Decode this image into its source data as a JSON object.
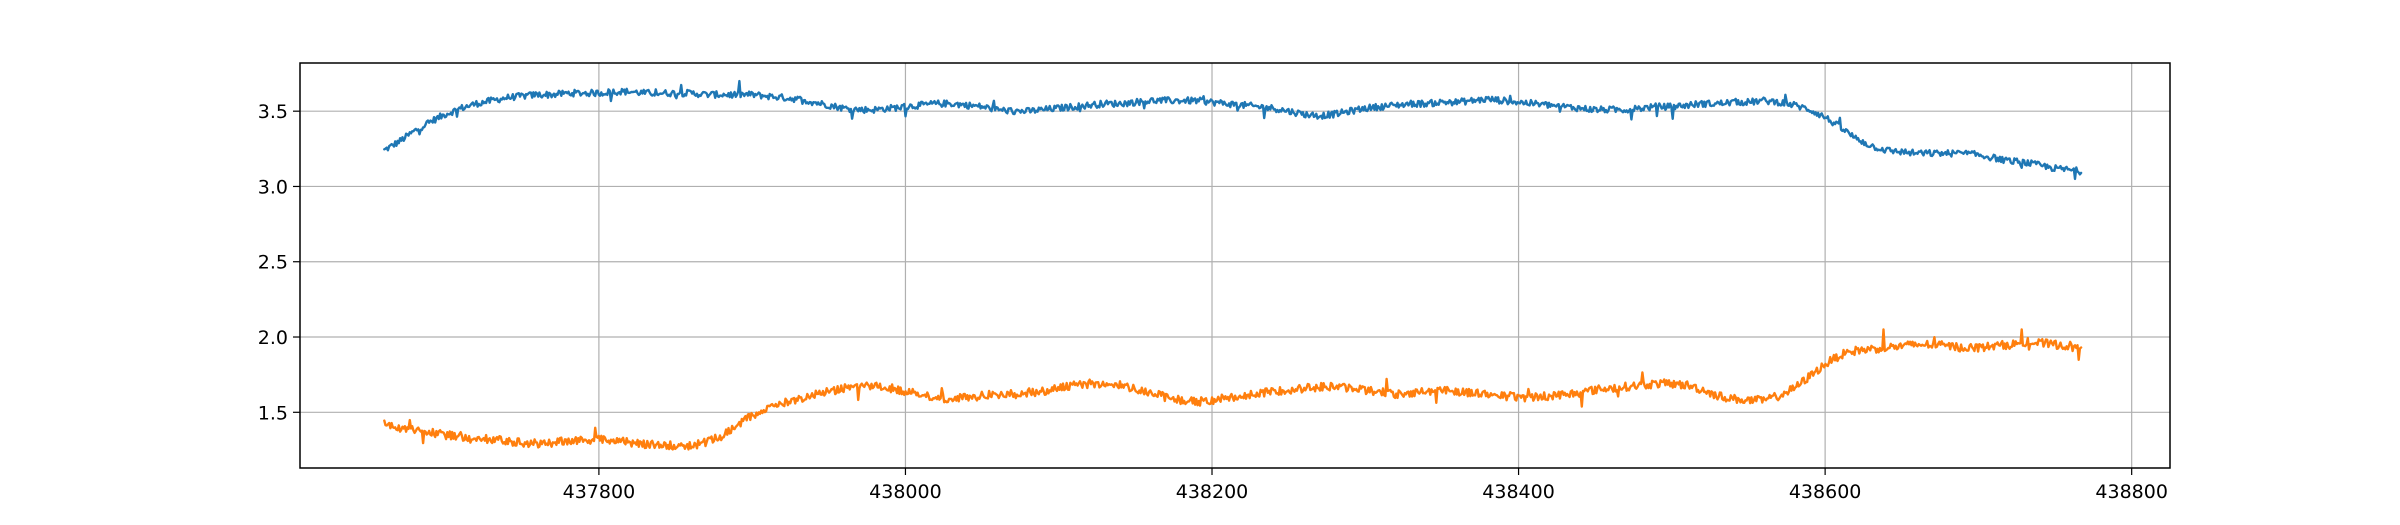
{
  "chart_data": {
    "type": "line",
    "title": "",
    "xlabel": "",
    "ylabel": "",
    "xlim": [
      437605,
      438825
    ],
    "ylim": [
      1.13,
      3.82
    ],
    "grid": true,
    "legend": "none",
    "xticks": [
      437800,
      438000,
      438200,
      438400,
      438600,
      438800
    ],
    "yticks": [
      1.5,
      2.0,
      2.5,
      3.0,
      3.5
    ],
    "series": [
      {
        "color": "#1f77b4",
        "noise": 0.022,
        "x": [
          437660,
          437670,
          437680,
          437690,
          437700,
          437710,
          437720,
          437730,
          437740,
          437750,
          437760,
          437770,
          437780,
          437790,
          437800,
          437810,
          437820,
          437830,
          437840,
          437850,
          437860,
          437870,
          437880,
          437890,
          437900,
          437910,
          437920,
          437930,
          437940,
          437950,
          437960,
          437970,
          437980,
          437990,
          438000,
          438010,
          438020,
          438030,
          438040,
          438050,
          438060,
          438070,
          438080,
          438090,
          438100,
          438110,
          438120,
          438130,
          438140,
          438150,
          438160,
          438170,
          438180,
          438190,
          438200,
          438210,
          438220,
          438230,
          438240,
          438250,
          438260,
          438270,
          438280,
          438290,
          438300,
          438310,
          438320,
          438330,
          438340,
          438350,
          438360,
          438370,
          438380,
          438390,
          438400,
          438410,
          438420,
          438430,
          438440,
          438450,
          438460,
          438470,
          438480,
          438490,
          438500,
          438510,
          438520,
          438530,
          438540,
          438550,
          438560,
          438570,
          438580,
          438590,
          438600,
          438610,
          438620,
          438630,
          438640,
          438650,
          438660,
          438670,
          438680,
          438690,
          438700,
          438710,
          438720,
          438730,
          438740,
          438750,
          438760,
          438767
        ],
        "y": [
          3.24,
          3.3,
          3.37,
          3.43,
          3.48,
          3.52,
          3.55,
          3.57,
          3.59,
          3.6,
          3.61,
          3.61,
          3.62,
          3.62,
          3.62,
          3.63,
          3.63,
          3.62,
          3.62,
          3.62,
          3.62,
          3.61,
          3.61,
          3.61,
          3.61,
          3.6,
          3.59,
          3.58,
          3.56,
          3.54,
          3.52,
          3.51,
          3.51,
          3.52,
          3.53,
          3.54,
          3.55,
          3.55,
          3.54,
          3.53,
          3.51,
          3.5,
          3.5,
          3.51,
          3.52,
          3.53,
          3.54,
          3.55,
          3.55,
          3.56,
          3.57,
          3.57,
          3.57,
          3.57,
          3.56,
          3.55,
          3.54,
          3.53,
          3.52,
          3.5,
          3.48,
          3.47,
          3.48,
          3.5,
          3.52,
          3.53,
          3.54,
          3.55,
          3.55,
          3.56,
          3.56,
          3.57,
          3.58,
          3.57,
          3.56,
          3.55,
          3.54,
          3.53,
          3.52,
          3.51,
          3.51,
          3.51,
          3.52,
          3.53,
          3.53,
          3.54,
          3.55,
          3.55,
          3.56,
          3.56,
          3.57,
          3.56,
          3.54,
          3.51,
          3.46,
          3.39,
          3.32,
          3.27,
          3.24,
          3.23,
          3.22,
          3.22,
          3.22,
          3.22,
          3.21,
          3.19,
          3.17,
          3.16,
          3.14,
          3.12,
          3.11,
          3.1
        ]
      },
      {
        "color": "#ff7f0e",
        "noise": 0.028,
        "x": [
          437660,
          437670,
          437680,
          437690,
          437700,
          437710,
          437720,
          437730,
          437740,
          437750,
          437760,
          437770,
          437780,
          437790,
          437800,
          437810,
          437820,
          437830,
          437840,
          437850,
          437860,
          437870,
          437880,
          437890,
          437900,
          437910,
          437920,
          437930,
          437940,
          437950,
          437960,
          437970,
          437980,
          437990,
          438000,
          438010,
          438020,
          438030,
          438040,
          438050,
          438060,
          438070,
          438080,
          438090,
          438100,
          438110,
          438120,
          438130,
          438140,
          438150,
          438160,
          438170,
          438180,
          438190,
          438200,
          438210,
          438220,
          438230,
          438240,
          438250,
          438260,
          438270,
          438280,
          438290,
          438300,
          438310,
          438320,
          438330,
          438340,
          438350,
          438360,
          438370,
          438380,
          438390,
          438400,
          438410,
          438420,
          438430,
          438440,
          438450,
          438460,
          438470,
          438480,
          438490,
          438500,
          438510,
          438520,
          438530,
          438540,
          438550,
          438560,
          438570,
          438580,
          438590,
          438600,
          438610,
          438620,
          438630,
          438640,
          438650,
          438660,
          438670,
          438680,
          438690,
          438700,
          438710,
          438720,
          438730,
          438740,
          438750,
          438760,
          438767
        ],
        "y": [
          1.42,
          1.4,
          1.38,
          1.36,
          1.35,
          1.34,
          1.33,
          1.32,
          1.31,
          1.3,
          1.29,
          1.3,
          1.31,
          1.31,
          1.32,
          1.31,
          1.3,
          1.29,
          1.28,
          1.28,
          1.28,
          1.3,
          1.34,
          1.41,
          1.48,
          1.53,
          1.56,
          1.59,
          1.62,
          1.64,
          1.66,
          1.67,
          1.67,
          1.66,
          1.64,
          1.62,
          1.6,
          1.59,
          1.6,
          1.61,
          1.62,
          1.62,
          1.63,
          1.64,
          1.66,
          1.68,
          1.69,
          1.69,
          1.68,
          1.66,
          1.63,
          1.6,
          1.58,
          1.57,
          1.58,
          1.6,
          1.61,
          1.62,
          1.64,
          1.65,
          1.66,
          1.67,
          1.67,
          1.66,
          1.65,
          1.63,
          1.62,
          1.63,
          1.64,
          1.65,
          1.64,
          1.63,
          1.62,
          1.61,
          1.6,
          1.6,
          1.61,
          1.62,
          1.63,
          1.65,
          1.66,
          1.67,
          1.68,
          1.69,
          1.69,
          1.68,
          1.65,
          1.61,
          1.59,
          1.58,
          1.58,
          1.61,
          1.66,
          1.74,
          1.82,
          1.88,
          1.91,
          1.92,
          1.93,
          1.94,
          1.95,
          1.95,
          1.94,
          1.93,
          1.93,
          1.94,
          1.95,
          1.96,
          1.96,
          1.95,
          1.94,
          1.94
        ]
      }
    ]
  }
}
